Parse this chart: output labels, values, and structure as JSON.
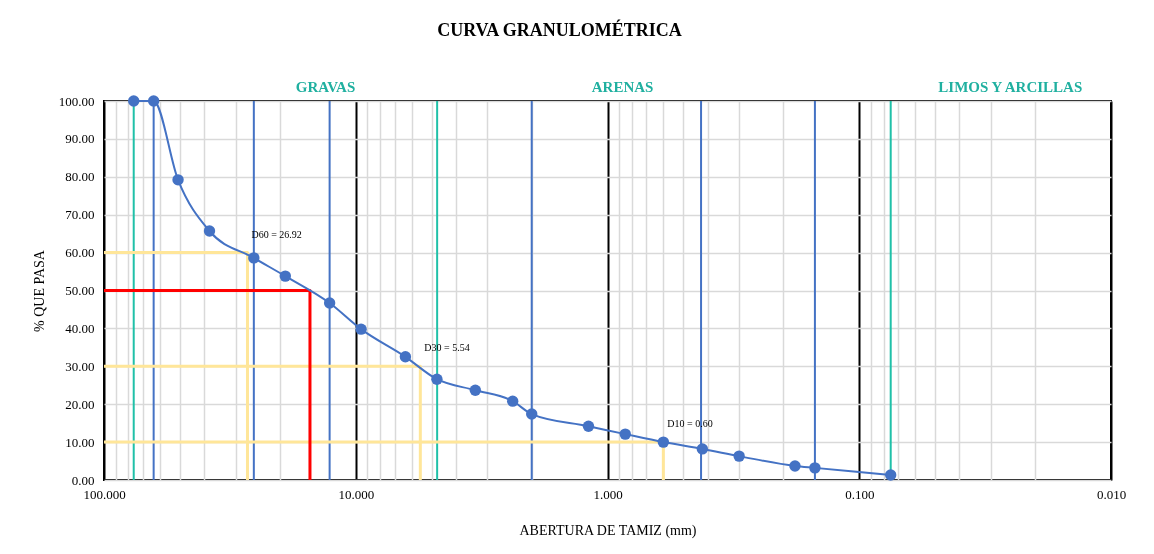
{
  "chart_data": {
    "type": "line",
    "title": "CURVA GRANULOMÉTRICA",
    "xlabel": "ABERTURA DE TAMIZ (mm)",
    "ylabel": "% QUE PASA",
    "log": "x",
    "grid": true,
    "marker": "circle",
    "xlim": [
      100,
      0.01
    ],
    "ylim": [
      0,
      100
    ],
    "xticks": [
      {
        "value": 100,
        "label": "100.000"
      },
      {
        "value": 90,
        "label": null
      },
      {
        "value": 80,
        "label": null
      },
      {
        "value": 70,
        "label": null
      },
      {
        "value": 60,
        "label": null
      },
      {
        "value": 50,
        "label": null
      },
      {
        "value": 40,
        "label": null
      },
      {
        "value": 30,
        "label": null
      },
      {
        "value": 20,
        "label": null
      },
      {
        "value": 10,
        "label": "10.000"
      },
      {
        "value": 9,
        "label": null
      },
      {
        "value": 8,
        "label": null
      },
      {
        "value": 7,
        "label": null
      },
      {
        "value": 6,
        "label": null
      },
      {
        "value": 5,
        "label": null
      },
      {
        "value": 4,
        "label": null
      },
      {
        "value": 3,
        "label": null
      },
      {
        "value": 2,
        "label": null
      },
      {
        "value": 1,
        "label": "1.000"
      },
      {
        "value": 0.9,
        "label": null
      },
      {
        "value": 0.8,
        "label": null
      },
      {
        "value": 0.7,
        "label": null
      },
      {
        "value": 0.6,
        "label": null
      },
      {
        "value": 0.5,
        "label": null
      },
      {
        "value": 0.4,
        "label": null
      },
      {
        "value": 0.3,
        "label": null
      },
      {
        "value": 0.2,
        "label": null
      },
      {
        "value": 0.1,
        "label": "0.100"
      },
      {
        "value": 0.09,
        "label": null
      },
      {
        "value": 0.08,
        "label": null
      },
      {
        "value": 0.07,
        "label": null
      },
      {
        "value": 0.06,
        "label": null
      },
      {
        "value": 0.05,
        "label": null
      },
      {
        "value": 0.04,
        "label": null
      },
      {
        "value": 0.03,
        "label": null
      },
      {
        "value": 0.02,
        "label": null
      },
      {
        "value": 0.01,
        "label": "0.010"
      }
    ],
    "yticks": [
      {
        "value": 0,
        "label": "0.00"
      },
      {
        "value": 10,
        "label": "10.00"
      },
      {
        "value": 20,
        "label": "20.00"
      },
      {
        "value": 30,
        "label": "30.00"
      },
      {
        "value": 40,
        "label": "40.00"
      },
      {
        "value": 50,
        "label": "50.00"
      },
      {
        "value": 60,
        "label": "60.00"
      },
      {
        "value": 70,
        "label": "70.00"
      },
      {
        "value": 80,
        "label": "80.00"
      },
      {
        "value": 90,
        "label": "90.00"
      },
      {
        "value": 100,
        "label": "100.00"
      }
    ],
    "series": [
      {
        "color": "#ffe699",
        "marker": "none",
        "x": [
          100,
          26.92,
          26.92
        ],
        "values": [
          60,
          60,
          0
        ]
      },
      {
        "color": "#ffe699",
        "marker": "none",
        "x": [
          100,
          5.54,
          5.54
        ],
        "values": [
          30,
          30,
          0
        ]
      },
      {
        "color": "#ffe699",
        "marker": "none",
        "x": [
          100,
          0.6,
          0.6
        ],
        "values": [
          10,
          10,
          0
        ]
      },
      {
        "color": "#ff0000",
        "marker": "none",
        "x": [
          100,
          15.2,
          15.2
        ],
        "values": [
          50,
          50,
          0
        ]
      },
      {
        "color": "#4472c4",
        "x": [
          76.2,
          63.5,
          50.8,
          38.1,
          25.4,
          19.05,
          12.7,
          9.525,
          6.35,
          4.76,
          3.35,
          2.38,
          2.0,
          1.19,
          0.85,
          0.6,
          0.42,
          0.3,
          0.18,
          0.15,
          0.075
        ],
        "values": [
          100,
          100,
          79.2,
          65.7,
          58.6,
          53.8,
          46.7,
          39.8,
          32.5,
          26.6,
          23.7,
          20.8,
          17.4,
          14.2,
          12.1,
          10.0,
          8.2,
          6.3,
          3.7,
          3.2,
          1.3
        ]
      }
    ],
    "ref_lines": [
      {
        "axis": "x",
        "value": 76.2,
        "color": "#20c0a8"
      },
      {
        "axis": "x",
        "value": 63.5,
        "color": "#4472c4"
      },
      {
        "axis": "x",
        "value": 25.4,
        "color": "#4472c4"
      },
      {
        "axis": "x",
        "value": 12.7,
        "color": "#4472c4"
      },
      {
        "axis": "x",
        "value": 4.75,
        "color": "#20c0a8"
      },
      {
        "axis": "x",
        "value": 2.0,
        "color": "#4472c4"
      },
      {
        "axis": "x",
        "value": 0.425,
        "color": "#4472c4"
      },
      {
        "axis": "x",
        "value": 0.15,
        "color": "#4472c4"
      },
      {
        "axis": "x",
        "value": 0.075,
        "color": "#20c0a8"
      }
    ],
    "annotations": [
      {
        "text": "D60 = 26.92",
        "x": 26.92,
        "y": 60
      },
      {
        "text": "D30 = 5.54",
        "x": 5.54,
        "y": 30
      },
      {
        "text": "D10 = 0.60",
        "x": 0.6,
        "y": 10
      },
      "GRAVAS",
      "ARENAS",
      "LIMOS Y ARCILLAS"
    ]
  }
}
